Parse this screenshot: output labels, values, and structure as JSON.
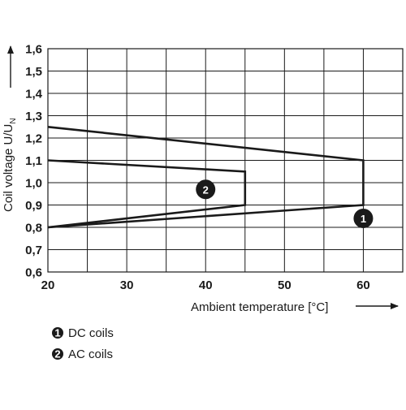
{
  "chart_data": {
    "type": "line",
    "xlabel": "Ambient temperature [°C]",
    "ylabel_main": "Coil voltage U/U",
    "ylabel_sub": "N",
    "xlim": [
      20,
      65
    ],
    "ylim": [
      0.6,
      1.6
    ],
    "x_ticks": [
      20,
      30,
      40,
      50,
      60
    ],
    "x_tick_labels": [
      "20",
      "30",
      "40",
      "50",
      "60"
    ],
    "y_ticks": [
      0.6,
      0.7,
      0.8,
      0.9,
      1.0,
      1.1,
      1.2,
      1.3,
      1.4,
      1.5,
      1.6
    ],
    "y_tick_labels": [
      "0,6",
      "0,7",
      "0,8",
      "0,9",
      "1,0",
      "1,1",
      "1,2",
      "1,3",
      "1,4",
      "1,5",
      "1,6"
    ],
    "grid": true,
    "series": [
      {
        "marker": "1",
        "points": [
          [
            20,
            1.25
          ],
          [
            60,
            1.1
          ],
          [
            60,
            0.9
          ],
          [
            20,
            0.8
          ]
        ],
        "marker_at": [
          60,
          0.84
        ]
      },
      {
        "marker": "2",
        "points": [
          [
            20,
            1.1
          ],
          [
            45,
            1.05
          ],
          [
            45,
            0.9
          ],
          [
            20,
            0.8
          ]
        ],
        "marker_at": [
          40,
          0.97
        ]
      }
    ],
    "legend": [
      {
        "marker": "1",
        "label": "DC coils"
      },
      {
        "marker": "2",
        "label": "AC coils"
      }
    ]
  }
}
